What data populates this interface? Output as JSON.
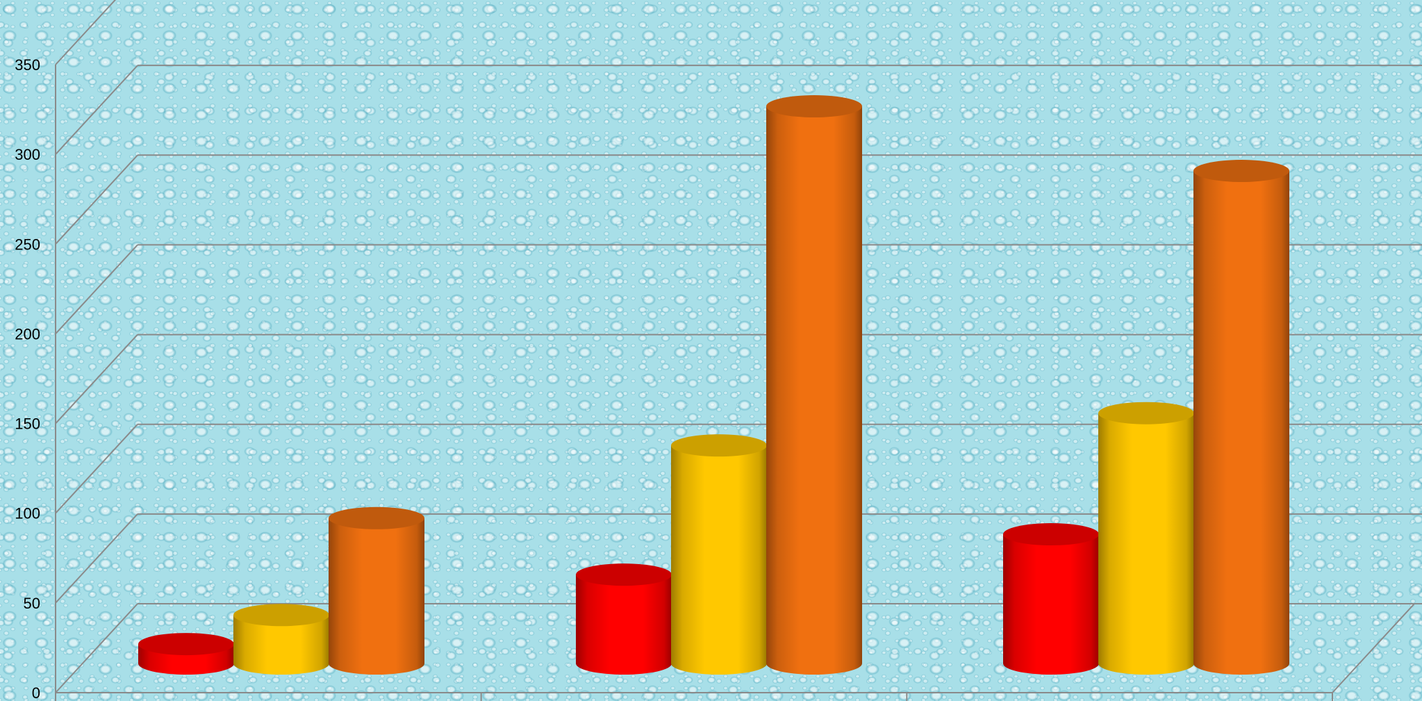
{
  "chart_data": {
    "type": "bar",
    "categories": [
      "",
      "",
      ""
    ],
    "series": [
      {
        "values": [
          12,
          55,
          80
        ]
      },
      {
        "values": [
          30,
          135,
          155
        ]
      },
      {
        "values": [
          90,
          345,
          305
        ]
      }
    ],
    "colors": [
      "#ff0000",
      "#ffc800",
      "#f07010"
    ],
    "yticks": [
      "0",
      "50",
      "100",
      "150",
      "200",
      "250",
      "300",
      "350"
    ],
    "ylim": [
      0,
      350
    ],
    "grid": true,
    "legend": "none",
    "style": "3d-cylinder",
    "title": "",
    "xlabel": "",
    "ylabel": ""
  }
}
